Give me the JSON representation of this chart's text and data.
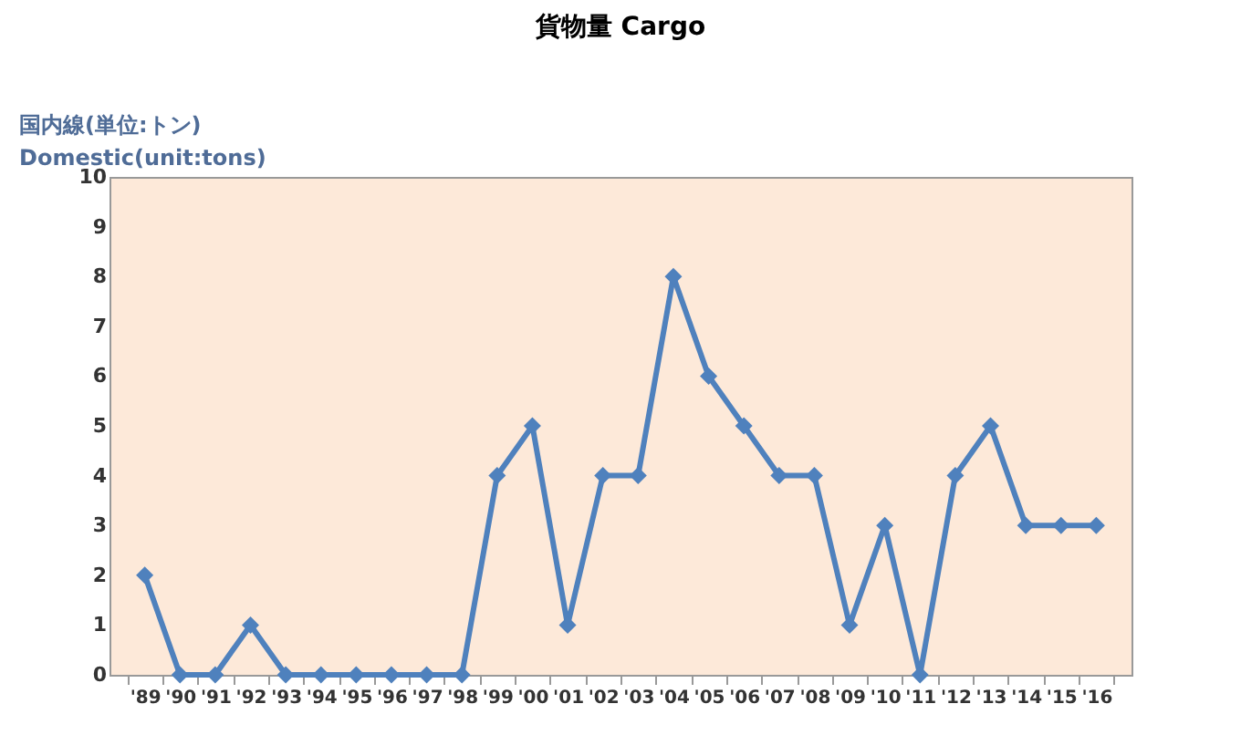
{
  "chart_data": {
    "type": "line",
    "title": "貨物量  Cargo",
    "ylabel": "国内線(単位:トン)\nDomestic(unit:tons)",
    "categories": [
      "'89",
      "'90",
      "'91",
      "'92",
      "'93",
      "'94",
      "'95",
      "'96",
      "'97",
      "'98",
      "'99",
      "'00",
      "'01",
      "'02",
      "'03",
      "'04",
      "'05",
      "'06",
      "'07",
      "'08",
      "'09",
      "'10",
      "'11",
      "'12",
      "'13",
      "'14",
      "'15",
      "'16"
    ],
    "series": [
      {
        "color": "#4f81bd",
        "values": [
          2,
          0,
          0,
          1,
          0,
          0,
          0,
          0,
          0,
          0,
          4,
          5,
          1,
          4,
          4,
          8,
          6,
          5,
          4,
          4,
          1,
          3,
          0,
          4,
          5,
          3,
          3,
          3
        ]
      }
    ],
    "ylim": [
      0,
      10
    ],
    "yticks": [
      0,
      1,
      2,
      3,
      4,
      5,
      6,
      7,
      8,
      9,
      10
    ],
    "grid": false,
    "marker": "diamond",
    "line_style": "solid"
  }
}
